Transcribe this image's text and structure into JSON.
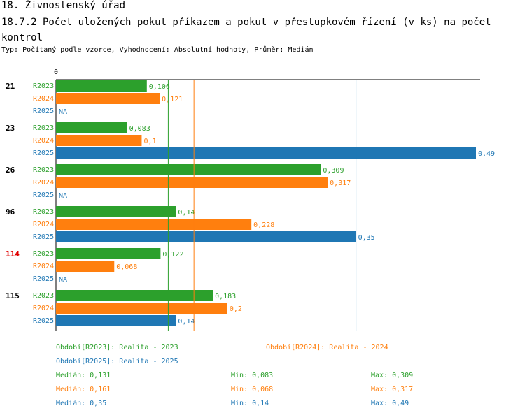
{
  "header": {
    "section": "18. Živnostenský úřad",
    "title": "18.7.2 Počet uložených pokut příkazem a pokut v přestupkovém řízení (v ks) na počet kontrol",
    "subtitle": "Typ: Počítaný podle vzorce, Vyhodnocení: Absolutní hodnoty, Průměr: Medián"
  },
  "colors": {
    "R2023": "#2ca02c",
    "R2024": "#ff7f0e",
    "R2025": "#1f77b4",
    "highlight": "#e00000",
    "text": "#000000"
  },
  "chart_data": {
    "type": "bar",
    "orientation": "horizontal",
    "axis_zero_label": "0",
    "xlim": [
      0,
      0.49
    ],
    "categories": [
      "21",
      "23",
      "26",
      "96",
      "114",
      "115"
    ],
    "highlight_category": "114",
    "series": [
      {
        "name": "R2023",
        "values": [
          0.106,
          0.083,
          0.309,
          0.14,
          0.122,
          0.183
        ],
        "labels": [
          "0,106",
          "0,083",
          "0,309",
          "0,14",
          "0,122",
          "0,183"
        ]
      },
      {
        "name": "R2024",
        "values": [
          0.121,
          0.1,
          0.317,
          0.228,
          0.068,
          0.2
        ],
        "labels": [
          "0,121",
          "0,1",
          "0,317",
          "0,228",
          "0,068",
          "0,2"
        ]
      },
      {
        "name": "R2025",
        "values": [
          null,
          0.49,
          null,
          0.35,
          null,
          0.14
        ],
        "labels": [
          "NA",
          "0,49",
          "NA",
          "0,35",
          "NA",
          "0,14"
        ]
      }
    ],
    "median_lines": {
      "R2023": 0.131,
      "R2024": 0.161,
      "R2025": 0.35
    }
  },
  "legend": {
    "periods": [
      {
        "series": "R2023",
        "text": "Období[R2023]: Realita - 2023"
      },
      {
        "series": "R2024",
        "text": "Období[R2024]: Realita - 2024"
      },
      {
        "series": "R2025",
        "text": "Období[R2025]: Realita - 2025"
      }
    ],
    "stats": [
      {
        "series": "R2023",
        "median": "Medián: 0,131",
        "min": "Min: 0,083",
        "max": "Max: 0,309"
      },
      {
        "series": "R2024",
        "median": "Medián: 0,161",
        "min": "Min: 0,068",
        "max": "Max: 0,317"
      },
      {
        "series": "R2025",
        "median": "Medián: 0,35",
        "min": "Min: 0,14",
        "max": "Max: 0,49"
      }
    ]
  }
}
